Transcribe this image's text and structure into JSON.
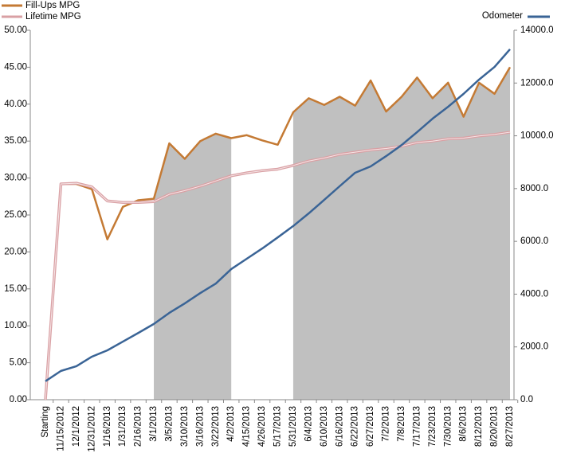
{
  "chart_data": {
    "type": "line",
    "categories": [
      "Starting",
      "11/15/2012",
      "12/1/2012",
      "12/31/2012",
      "1/16/2013",
      "1/31/2013",
      "2/16/2013",
      "3/1/2013",
      "3/5/2013",
      "3/10/2013",
      "3/16/2013",
      "3/22/2013",
      "4/2/2013",
      "4/15/2013",
      "4/26/2013",
      "5/17/2013",
      "5/31/2013",
      "6/4/2013",
      "6/10/2013",
      "6/16/2013",
      "6/22/2013",
      "6/27/2013",
      "7/2/2013",
      "7/8/2013",
      "7/17/2013",
      "7/23/2013",
      "7/30/2013",
      "8/6/2013",
      "8/12/2013",
      "8/20/2013",
      "8/27/2013"
    ],
    "series": [
      {
        "type": "area",
        "color": "#c0c0c0",
        "values": [
          null,
          null,
          null,
          null,
          null,
          null,
          null,
          27.2,
          34.7,
          32.6,
          35.0,
          36.0,
          35.4,
          null,
          null,
          null,
          38.9,
          40.8,
          39.9,
          41.0,
          39.8,
          43.2,
          39.0,
          41.0,
          43.6,
          40.8,
          42.9,
          38.3,
          42.9,
          41.4,
          45.0
        ]
      },
      {
        "name": "Fill-Ups MPG",
        "color": "#c47a34",
        "values": [
          0,
          29.2,
          29.2,
          28.5,
          21.7,
          26.1,
          27.0,
          27.2,
          34.7,
          32.6,
          35.0,
          36.0,
          35.4,
          35.8,
          35.1,
          34.5,
          38.9,
          40.8,
          39.9,
          41.0,
          39.8,
          43.2,
          39.0,
          41.0,
          43.6,
          40.8,
          42.9,
          38.3,
          42.9,
          41.4,
          45.0
        ]
      },
      {
        "name": "Lifetime MPG",
        "color": "#d9a0a4",
        "values": [
          0,
          29.2,
          29.3,
          28.8,
          26.9,
          26.7,
          26.7,
          26.8,
          27.8,
          28.3,
          28.9,
          29.6,
          30.3,
          30.7,
          31.0,
          31.2,
          31.7,
          32.3,
          32.7,
          33.2,
          33.5,
          33.8,
          34.0,
          34.3,
          34.8,
          35.0,
          35.3,
          35.4,
          35.7,
          35.9,
          36.2
        ]
      },
      {
        "name": "Odometer",
        "color": "#3a6496",
        "axis": "y2",
        "values": [
          700,
          1090,
          1270,
          1630,
          1870,
          2200,
          2530,
          2870,
          3290,
          3650,
          4040,
          4400,
          4950,
          5340,
          5730,
          6150,
          6580,
          7060,
          7570,
          8090,
          8600,
          8840,
          9230,
          9650,
          10140,
          10650,
          11100,
          11590,
          12130,
          12610,
          13280
        ]
      }
    ],
    "ylim": [
      0,
      50
    ],
    "yticks": [
      {
        "value": 0,
        "label": "0.00"
      },
      {
        "value": 5,
        "label": "5.00"
      },
      {
        "value": 10,
        "label": "10.00"
      },
      {
        "value": 15,
        "label": "15.00"
      },
      {
        "value": 20,
        "label": "20.00"
      },
      {
        "value": 25,
        "label": "25.00"
      },
      {
        "value": 30,
        "label": "30.00"
      },
      {
        "value": 35,
        "label": "35.00"
      },
      {
        "value": 40,
        "label": "40.00"
      },
      {
        "value": 45,
        "label": "45.00"
      },
      {
        "value": 50,
        "label": "50.00"
      }
    ],
    "y2lim": [
      0,
      14000
    ],
    "y2ticks": [
      {
        "value": 0,
        "label": "0.0"
      },
      {
        "value": 2000,
        "label": "2000.0"
      },
      {
        "value": 4000,
        "label": "4000.0"
      },
      {
        "value": 6000,
        "label": "6000.0"
      },
      {
        "value": 8000,
        "label": "8000.0"
      },
      {
        "value": 10000,
        "label": "10000.0"
      },
      {
        "value": 12000,
        "label": "12000.0"
      },
      {
        "value": 14000,
        "label": "14000.0"
      }
    ]
  }
}
